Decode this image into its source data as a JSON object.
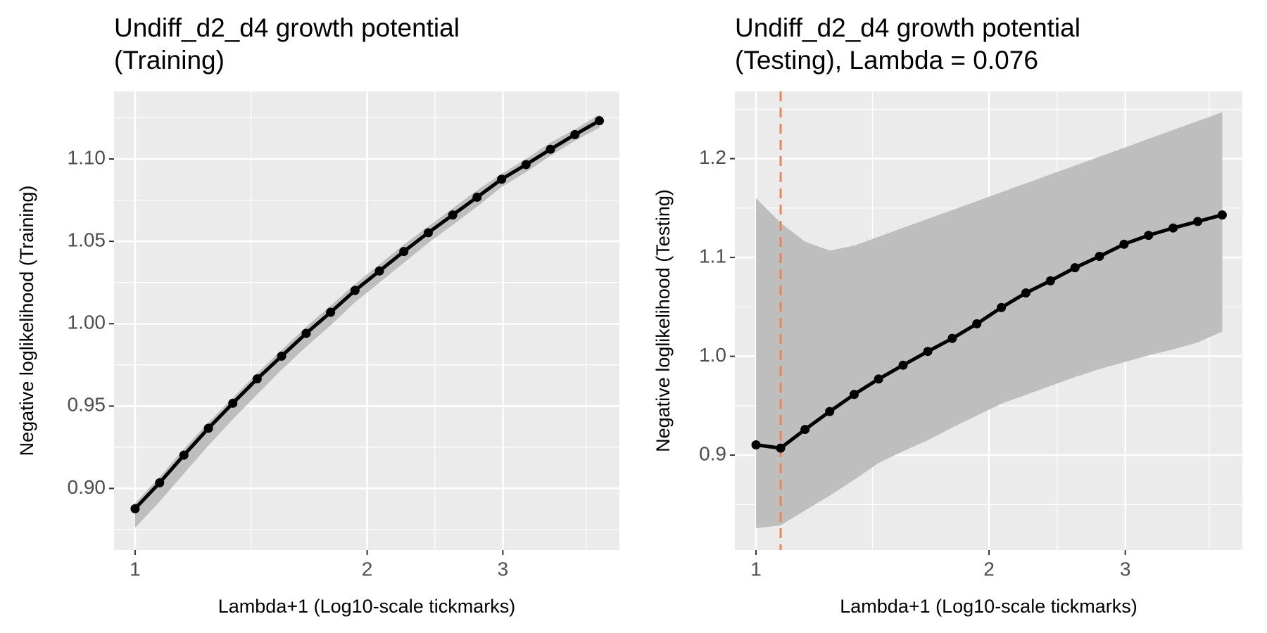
{
  "chart_data": [
    {
      "type": "line",
      "title": [
        "Undiff_d2_d4 growth potential",
        "(Training)"
      ],
      "xlabel": "Lambda+1 (Log10-scale tickmarks)",
      "ylabel": "Negative loglikelihood (Training)",
      "xlog": true,
      "x": [
        1,
        1.076,
        1.157,
        1.245,
        1.339,
        1.44,
        1.549,
        1.667,
        1.793,
        1.929,
        2.075,
        2.232,
        2.401,
        2.583,
        2.778,
        2.989,
        3.215,
        3.459,
        3.721,
        4.003
      ],
      "values": [
        0.8877,
        0.9034,
        0.9202,
        0.9365,
        0.9517,
        0.9665,
        0.9803,
        0.9941,
        1.0069,
        1.0202,
        1.032,
        1.0438,
        1.0552,
        1.066,
        1.0768,
        1.0877,
        1.0966,
        1.1059,
        1.1148,
        1.1232
      ],
      "lower": [
        0.876,
        0.892,
        0.909,
        0.926,
        0.942,
        0.957,
        0.972,
        0.986,
        0.999,
        1.013,
        1.025,
        1.037,
        1.049,
        1.06,
        1.071,
        1.083,
        1.092,
        1.102,
        1.111,
        1.119
      ],
      "upper": [
        0.891,
        0.907,
        0.924,
        0.94,
        0.955,
        0.97,
        0.984,
        0.998,
        1.011,
        1.024,
        1.036,
        1.048,
        1.059,
        1.07,
        1.081,
        1.091,
        1.1,
        1.11,
        1.118,
        1.127
      ],
      "color": "#000000",
      "ribbon_color": "#bebebe",
      "xlim": [
        0.939,
        4.25
      ],
      "xticks": [
        1,
        2,
        3
      ],
      "xminor": [
        1.414,
        2.449,
        3.85
      ],
      "ylim": [
        0.8626,
        1.141
      ],
      "yticks": [
        {
          "value": 0.9,
          "label": "0.90"
        },
        0.95,
        {
          "value": 1.0,
          "label": "1.00"
        },
        1.05,
        {
          "value": 1.1,
          "label": "1.10"
        }
      ],
      "yminor": [
        0.875,
        0.925,
        0.975,
        1.025,
        1.075,
        1.125
      ],
      "grid": true
    },
    {
      "type": "line",
      "title": [
        "Undiff_d2_d4 growth potential",
        "(Testing), Lambda = 0.076"
      ],
      "xlabel": "Lambda+1 (Log10-scale tickmarks)",
      "ylabel": "Negative loglikelihood (Testing)",
      "xlog": true,
      "x": [
        1,
        1.076,
        1.157,
        1.245,
        1.339,
        1.44,
        1.549,
        1.667,
        1.793,
        1.929,
        2.075,
        2.232,
        2.401,
        2.583,
        2.778,
        2.989,
        3.215,
        3.459,
        3.721,
        4.003
      ],
      "values": [
        0.9104,
        0.9071,
        0.926,
        0.9441,
        0.9614,
        0.977,
        0.991,
        1.0049,
        1.0181,
        1.0329,
        1.0493,
        1.0641,
        1.0764,
        1.0896,
        1.1011,
        1.1134,
        1.1224,
        1.1298,
        1.1364,
        1.143
      ],
      "lower": [
        0.826,
        0.829,
        0.844,
        0.859,
        0.875,
        0.892,
        0.904,
        0.915,
        0.928,
        0.94,
        0.952,
        0.961,
        0.97,
        0.979,
        0.987,
        0.994,
        1.001,
        1.007,
        1.014,
        1.025
      ],
      "upper": [
        1.16,
        1.135,
        1.116,
        1.107,
        1.112,
        1.121,
        1.13,
        1.139,
        1.148,
        1.157,
        1.166,
        1.175,
        1.184,
        1.193,
        1.202,
        1.211,
        1.22,
        1.229,
        1.238,
        1.247
      ],
      "color": "#000000",
      "ribbon_color": "#bebebe",
      "vline": {
        "value": 1.076,
        "color": "#e8845a"
      },
      "xlim": [
        0.939,
        4.25
      ],
      "xticks": [
        1,
        2,
        3
      ],
      "xminor": [
        1.414,
        2.449,
        3.85
      ],
      "ylim": [
        0.804,
        1.268
      ],
      "yticks": [
        0.9,
        {
          "value": 1.0,
          "label": "1.0"
        },
        1.1,
        1.2
      ],
      "yminor": [
        0.85,
        0.95,
        1.05,
        1.15,
        1.25
      ],
      "grid": true
    }
  ]
}
